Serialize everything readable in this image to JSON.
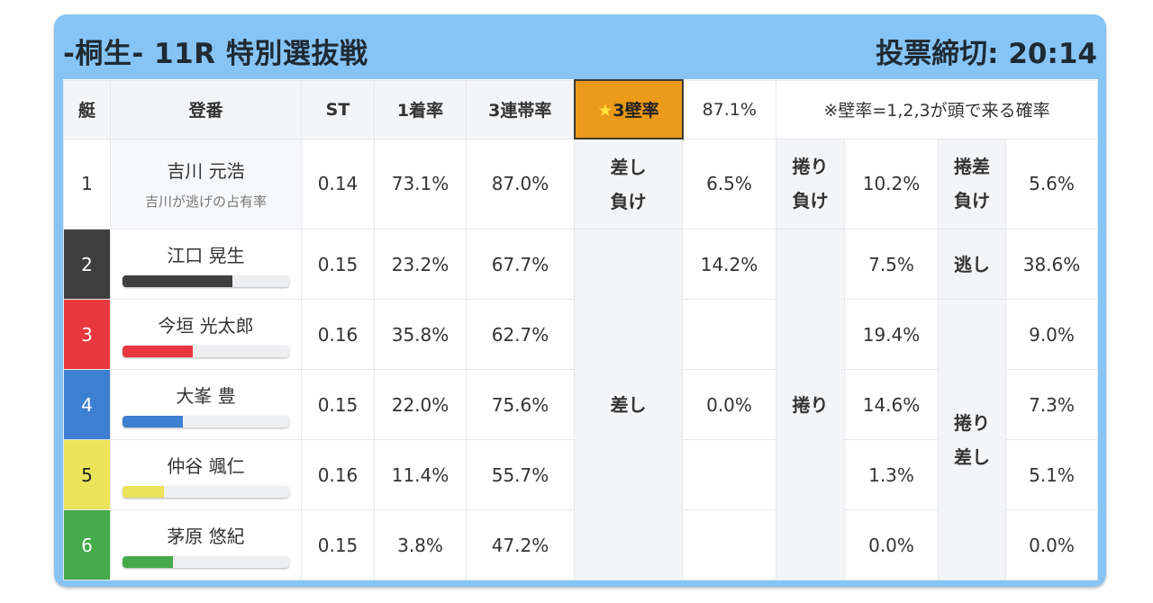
{
  "header": {
    "title": "-桐生- 11R 特別選抜戦",
    "deadline": "投票締切: 20:14"
  },
  "columns": {
    "boat": "艇",
    "racer": "登番",
    "st": "ST",
    "win": "1着率",
    "top3": "3連帯率",
    "wall_label": "★3壁率",
    "wall_value": "87.1%",
    "note": "※壁率=1,2,3が頭で来る確率"
  },
  "colors": {
    "boat1": "#ffffff",
    "boat2": "#3f3f3f",
    "boat3": "#e8383d",
    "boat4": "#3d7fd1",
    "boat5": "#ebe35a",
    "boat6": "#44aa4a",
    "wall_highlight": "#ec9a1a",
    "panel": "#86c4f6"
  },
  "rows": [
    {
      "boat": "1",
      "name": "吉川 元浩",
      "sub": "吉川が逃げの占有率",
      "st": "0.14",
      "win": "73.1%",
      "top3": "87.0%"
    },
    {
      "boat": "2",
      "name": "江口 晃生",
      "st": "0.15",
      "win": "23.2%",
      "top3": "67.7%",
      "bar": 0.66
    },
    {
      "boat": "3",
      "name": "今垣 光太郎",
      "st": "0.16",
      "win": "35.8%",
      "top3": "62.7%",
      "bar": 0.42
    },
    {
      "boat": "4",
      "name": "大峯 豊",
      "st": "0.15",
      "win": "22.0%",
      "top3": "75.6%",
      "bar": 0.36
    },
    {
      "boat": "5",
      "name": "仲谷 颯仁",
      "st": "0.16",
      "win": "11.4%",
      "top3": "55.7%",
      "bar": 0.25
    },
    {
      "boat": "6",
      "name": "茅原 悠紀",
      "st": "0.15",
      "win": "3.8%",
      "top3": "47.2%",
      "bar": 0.3
    }
  ],
  "kimarite": {
    "sashi_make": {
      "label_1": "差し",
      "label_2": "負け",
      "value": "6.5%"
    },
    "makuri_make": {
      "label_1": "捲り",
      "label_2": "負け",
      "value": "10.2%"
    },
    "makurizashi_make": {
      "label_1": "捲差",
      "label_2": "負け",
      "value": "5.6%"
    },
    "sashi": {
      "label": "差し",
      "values": [
        "14.2%",
        "",
        "0.0%",
        "",
        ""
      ]
    },
    "makuri": {
      "label": "捲り",
      "values": [
        "7.5%",
        "19.4%",
        "14.6%",
        "1.3%",
        "0.0%"
      ]
    },
    "nige": {
      "label": "逃し",
      "value": "38.6%"
    },
    "makurizashi": {
      "label_1": "捲り",
      "label_2": "差し",
      "values": [
        "9.0%",
        "7.3%",
        "5.1%",
        "0.0%"
      ]
    }
  }
}
